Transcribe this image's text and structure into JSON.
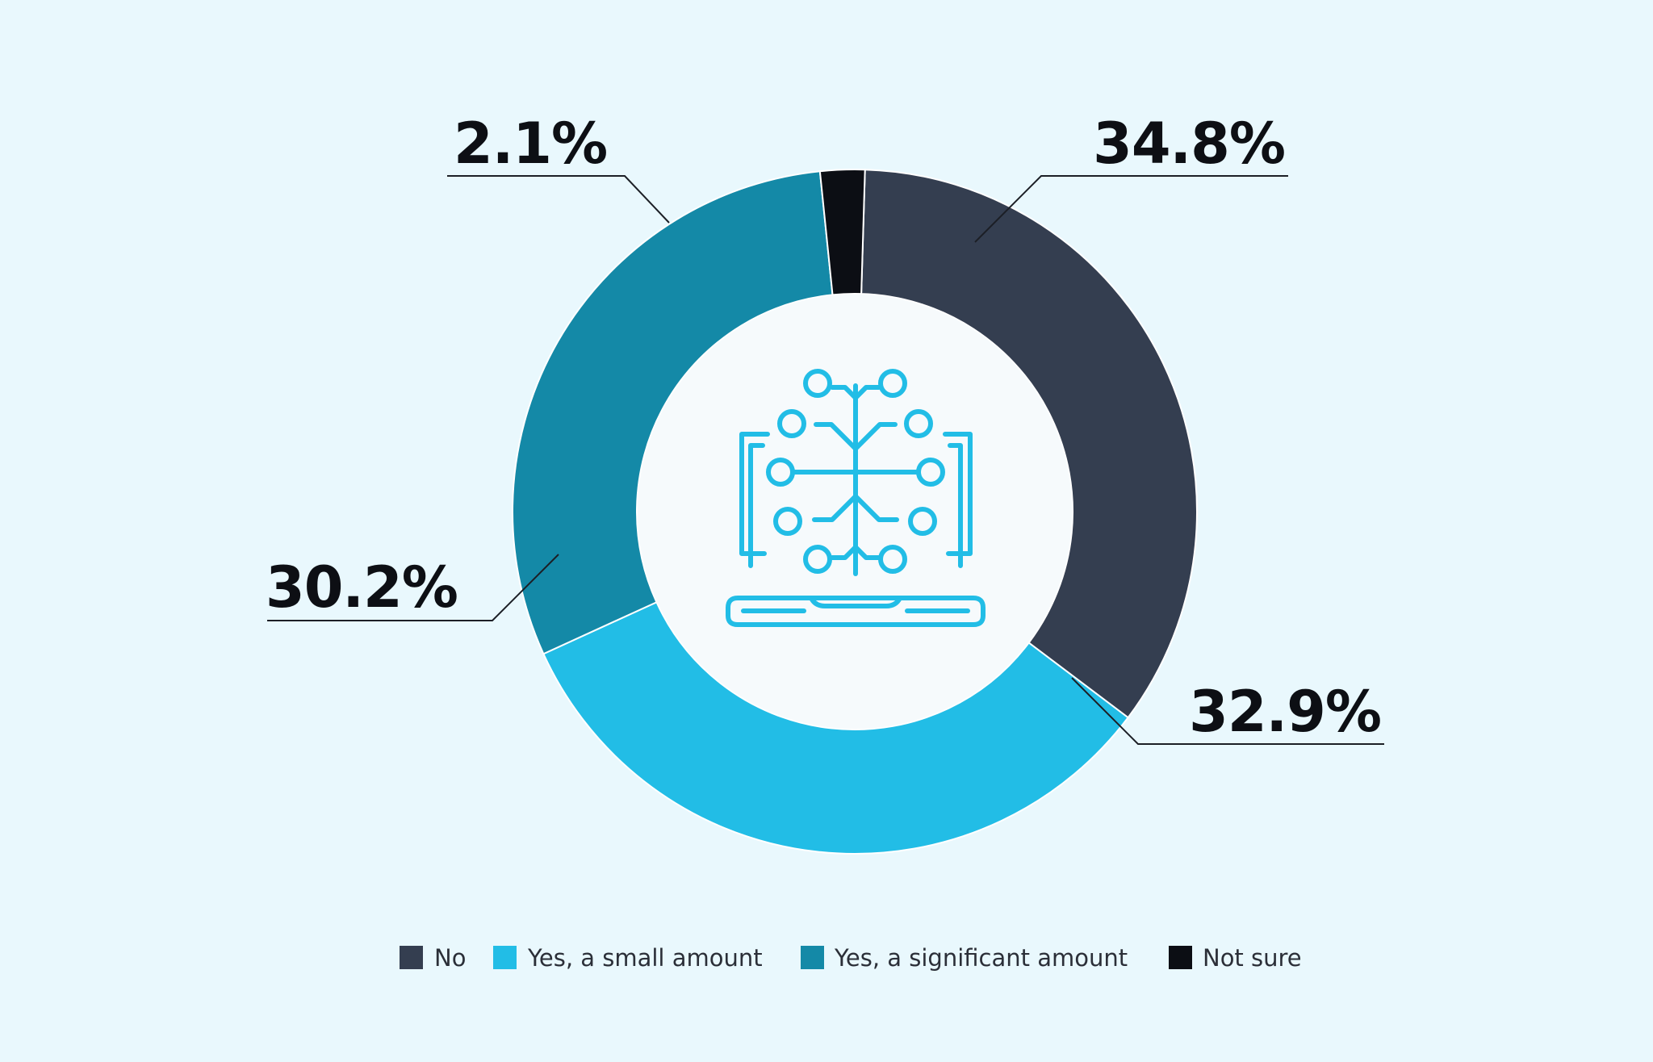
{
  "chart_data": {
    "type": "donut",
    "title": "",
    "series": [
      {
        "name": "No",
        "value": 34.8,
        "label": "34.8%",
        "color": "#343e50"
      },
      {
        "name": "Yes, a small amount",
        "value": 32.9,
        "label": "32.9%",
        "color": "#22bde6"
      },
      {
        "name": "Yes, a significant amount",
        "value": 30.2,
        "label": "30.2%",
        "color": "#1489a7"
      },
      {
        "name": "Not sure",
        "value": 2.1,
        "label": "2.1%",
        "color": "#0c0e14"
      }
    ],
    "center_icon": "laptop-circuit-tree-icon",
    "legend_position": "bottom",
    "start_angle_note": "clockwise from top"
  },
  "colors": {
    "background": "#e9f8fd",
    "center_fill": "#f6fafc",
    "icon": "#22bde6",
    "leader_line": "#1c1f26"
  }
}
